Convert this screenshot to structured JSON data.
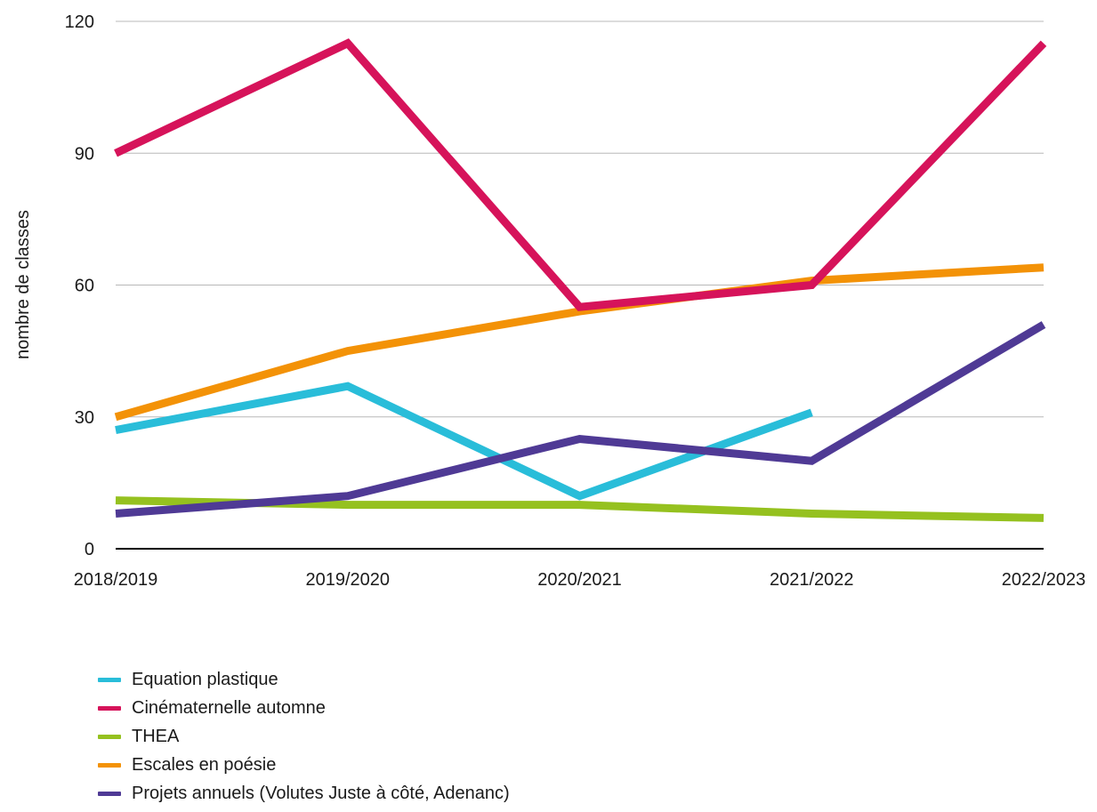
{
  "chart_data": {
    "type": "line",
    "title": "",
    "xlabel": "",
    "ylabel": "nombre de classes",
    "categories": [
      "2018/2019",
      "2019/2020",
      "2020/2021",
      "2021/2022",
      "2022/2023"
    ],
    "ylim": [
      0,
      120
    ],
    "yticks": [
      0,
      30,
      60,
      90,
      120
    ],
    "grid": true,
    "legend_position": "bottom-left",
    "series": [
      {
        "name": "Equation plastique",
        "color": "#29BDD9",
        "values": [
          27,
          37,
          12,
          31,
          null
        ]
      },
      {
        "name": "Cinématernelle automne",
        "color": "#D6135A",
        "values": [
          90,
          115,
          55,
          60,
          115
        ]
      },
      {
        "name": "THEA",
        "color": "#95C11F",
        "values": [
          11,
          10,
          10,
          8,
          7
        ]
      },
      {
        "name": "Escales en poésie",
        "color": "#F39207",
        "values": [
          30,
          45,
          54,
          61,
          64
        ]
      },
      {
        "name": "Projets annuels (Volutes Juste à côté, Adenanc)",
        "color": "#4F3A95",
        "values": [
          8,
          12,
          25,
          20,
          51
        ]
      }
    ]
  }
}
